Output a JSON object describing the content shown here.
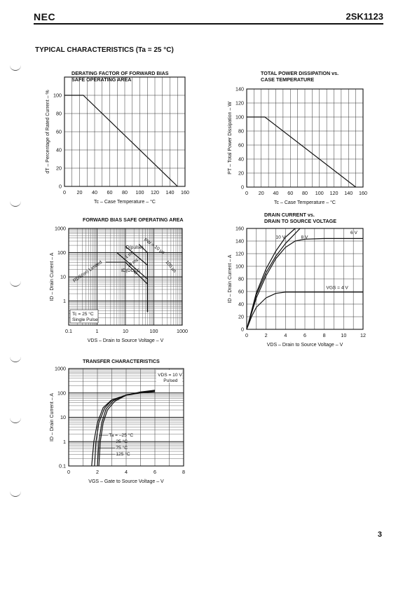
{
  "header": {
    "brand": "NEC",
    "part_number": "2SK1123"
  },
  "section_title": "TYPICAL CHARACTERISTICS (Ta = 25 °C)",
  "page_number": "3",
  "chart_data": [
    {
      "id": "derating",
      "type": "line",
      "title": [
        "DERATING FACTOR OF FORWARD BIAS",
        "SAFE OPERATING AREA"
      ],
      "xlabel": "Tc – Case Temperature – °C",
      "ylabel": "dT – Percentage of Rated Current – %",
      "xlim": [
        0,
        160
      ],
      "ylim": [
        0,
        120
      ],
      "xticks": [
        0,
        20,
        40,
        60,
        80,
        100,
        120,
        140,
        160
      ],
      "yticks": [
        20,
        40,
        60,
        80,
        100
      ],
      "grid": true,
      "series": [
        {
          "x": [
            0,
            25,
            150
          ],
          "y": [
            100,
            100,
            0
          ]
        }
      ]
    },
    {
      "id": "power",
      "type": "line",
      "title": [
        "TOTAL POWER DISSIPATION vs.",
        "CASE TEMPERATURE"
      ],
      "xlabel": "Tc – Case Temperature – °C",
      "ylabel": "PT – Total Power Dissipation – W",
      "xlim": [
        0,
        160
      ],
      "ylim": [
        0,
        140
      ],
      "xticks": [
        0,
        20,
        40,
        60,
        80,
        100,
        120,
        140,
        160
      ],
      "yticks": [
        20,
        40,
        60,
        80,
        100,
        120,
        140
      ],
      "grid": true,
      "series": [
        {
          "x": [
            0,
            25,
            150
          ],
          "y": [
            100,
            100,
            0
          ]
        }
      ]
    },
    {
      "id": "fbsoa",
      "type": "line",
      "title": [
        "FORWARD BIAS SAFE OPERATING AREA"
      ],
      "xlabel": "VDS – Drain to Source Voltage – V",
      "ylabel": "ID – Drain Current – A",
      "xscale": "log",
      "yscale": "log",
      "xlim": [
        0.1,
        1000
      ],
      "ylim": [
        0.1,
        1000
      ],
      "xticks": [
        0.1,
        1,
        10,
        100,
        1000
      ],
      "yticks": [
        1,
        10,
        100,
        1000
      ],
      "grid": true,
      "series": [
        {
          "name": "DC",
          "x": [
            2,
            10,
            60,
            60
          ],
          "y": [
            40,
            40,
            5,
            0.35
          ]
        },
        {
          "name": "1 ms",
          "x": [
            5,
            60,
            60
          ],
          "y": [
            100,
            8,
            0.35
          ]
        },
        {
          "name": "100 µs",
          "x": [
            10,
            60,
            60
          ],
          "y": [
            180,
            30,
            0.35
          ]
        },
        {
          "name": "10 µs",
          "x": [
            30,
            60,
            60
          ],
          "y": [
            220,
            100,
            0.35
          ]
        }
      ],
      "annotations": [
        "Tc = 25 °C",
        "Single Pulse",
        "RDS(on) Limited",
        "ID(pulse)",
        "ID(DC)",
        "PW = 10 µs",
        "100 µs",
        "1 ms",
        "10 ms",
        "DC"
      ]
    },
    {
      "id": "output",
      "type": "line",
      "title": [
        "DRAIN CURRENT vs.",
        "DRAIN TO SOURCE VOLTAGE"
      ],
      "xlabel": "VDS – Drain to Source Voltage – V",
      "ylabel": "ID – Drain Current – A",
      "xlim": [
        0,
        12
      ],
      "ylim": [
        0,
        160
      ],
      "xticks": [
        0,
        2,
        4,
        6,
        8,
        10,
        12
      ],
      "yticks": [
        0,
        20,
        40,
        60,
        80,
        100,
        120,
        140,
        160
      ],
      "grid": true,
      "series": [
        {
          "name": "VGS = 4 V",
          "x": [
            0,
            0.5,
            1,
            2,
            3,
            4,
            6,
            8,
            12
          ],
          "y": [
            0,
            20,
            35,
            50,
            57,
            59,
            59,
            59,
            59
          ]
        },
        {
          "name": "6 V",
          "x": [
            0,
            1,
            2,
            3,
            4,
            5,
            6,
            8,
            12
          ],
          "y": [
            0,
            50,
            85,
            112,
            130,
            140,
            143,
            144,
            144
          ]
        },
        {
          "name": "8 V",
          "x": [
            0,
            1,
            2,
            3,
            4,
            5,
            5.5
          ],
          "y": [
            0,
            55,
            90,
            116,
            136,
            152,
            160
          ]
        },
        {
          "name": "10 V",
          "x": [
            0,
            1,
            2,
            3,
            4,
            5
          ],
          "y": [
            0,
            58,
            96,
            124,
            146,
            160
          ]
        }
      ],
      "annotations": [
        "10 V",
        "8 V",
        "6 V",
        "VGS = 4 V"
      ]
    },
    {
      "id": "transfer",
      "type": "line",
      "title": [
        "TRANSFER CHARACTERISTICS"
      ],
      "xlabel": "VGS – Gate to Source Voltage – V",
      "ylabel": "ID – Drain Current – A",
      "yscale": "log",
      "xlim": [
        0,
        8
      ],
      "ylim": [
        0.1,
        1000
      ],
      "xticks": [
        0,
        2,
        4,
        6,
        8
      ],
      "yticks": [
        0.1,
        1,
        10,
        100,
        1000
      ],
      "grid": true,
      "series": [
        {
          "name": "Ta = -25 °C",
          "x": [
            2.1,
            2.2,
            2.4,
            2.7,
            3.2,
            4.0,
            5.0,
            6.0
          ],
          "y": [
            0.1,
            1,
            6,
            20,
            45,
            80,
            110,
            130
          ]
        },
        {
          "name": "25 °C",
          "x": [
            2.0,
            2.1,
            2.3,
            2.6,
            3.1,
            4.0,
            5.0,
            6.0
          ],
          "y": [
            0.1,
            1,
            6,
            22,
            48,
            82,
            108,
            125
          ]
        },
        {
          "name": "75 °C",
          "x": [
            1.8,
            1.9,
            2.1,
            2.5,
            3.0,
            4.0,
            5.0,
            6.0
          ],
          "y": [
            0.1,
            1,
            6,
            24,
            50,
            82,
            105,
            120
          ]
        },
        {
          "name": "125 °C",
          "x": [
            1.6,
            1.75,
            2.0,
            2.4,
            3.0,
            4.0,
            5.0,
            6.0
          ],
          "y": [
            0.1,
            1,
            6,
            25,
            52,
            80,
            100,
            112
          ]
        }
      ],
      "annotations": [
        "VDS = 10 V",
        "Pulsed",
        "Ta = –25 °C",
        "25 °C",
        "75 °C",
        "125 °C"
      ]
    }
  ]
}
